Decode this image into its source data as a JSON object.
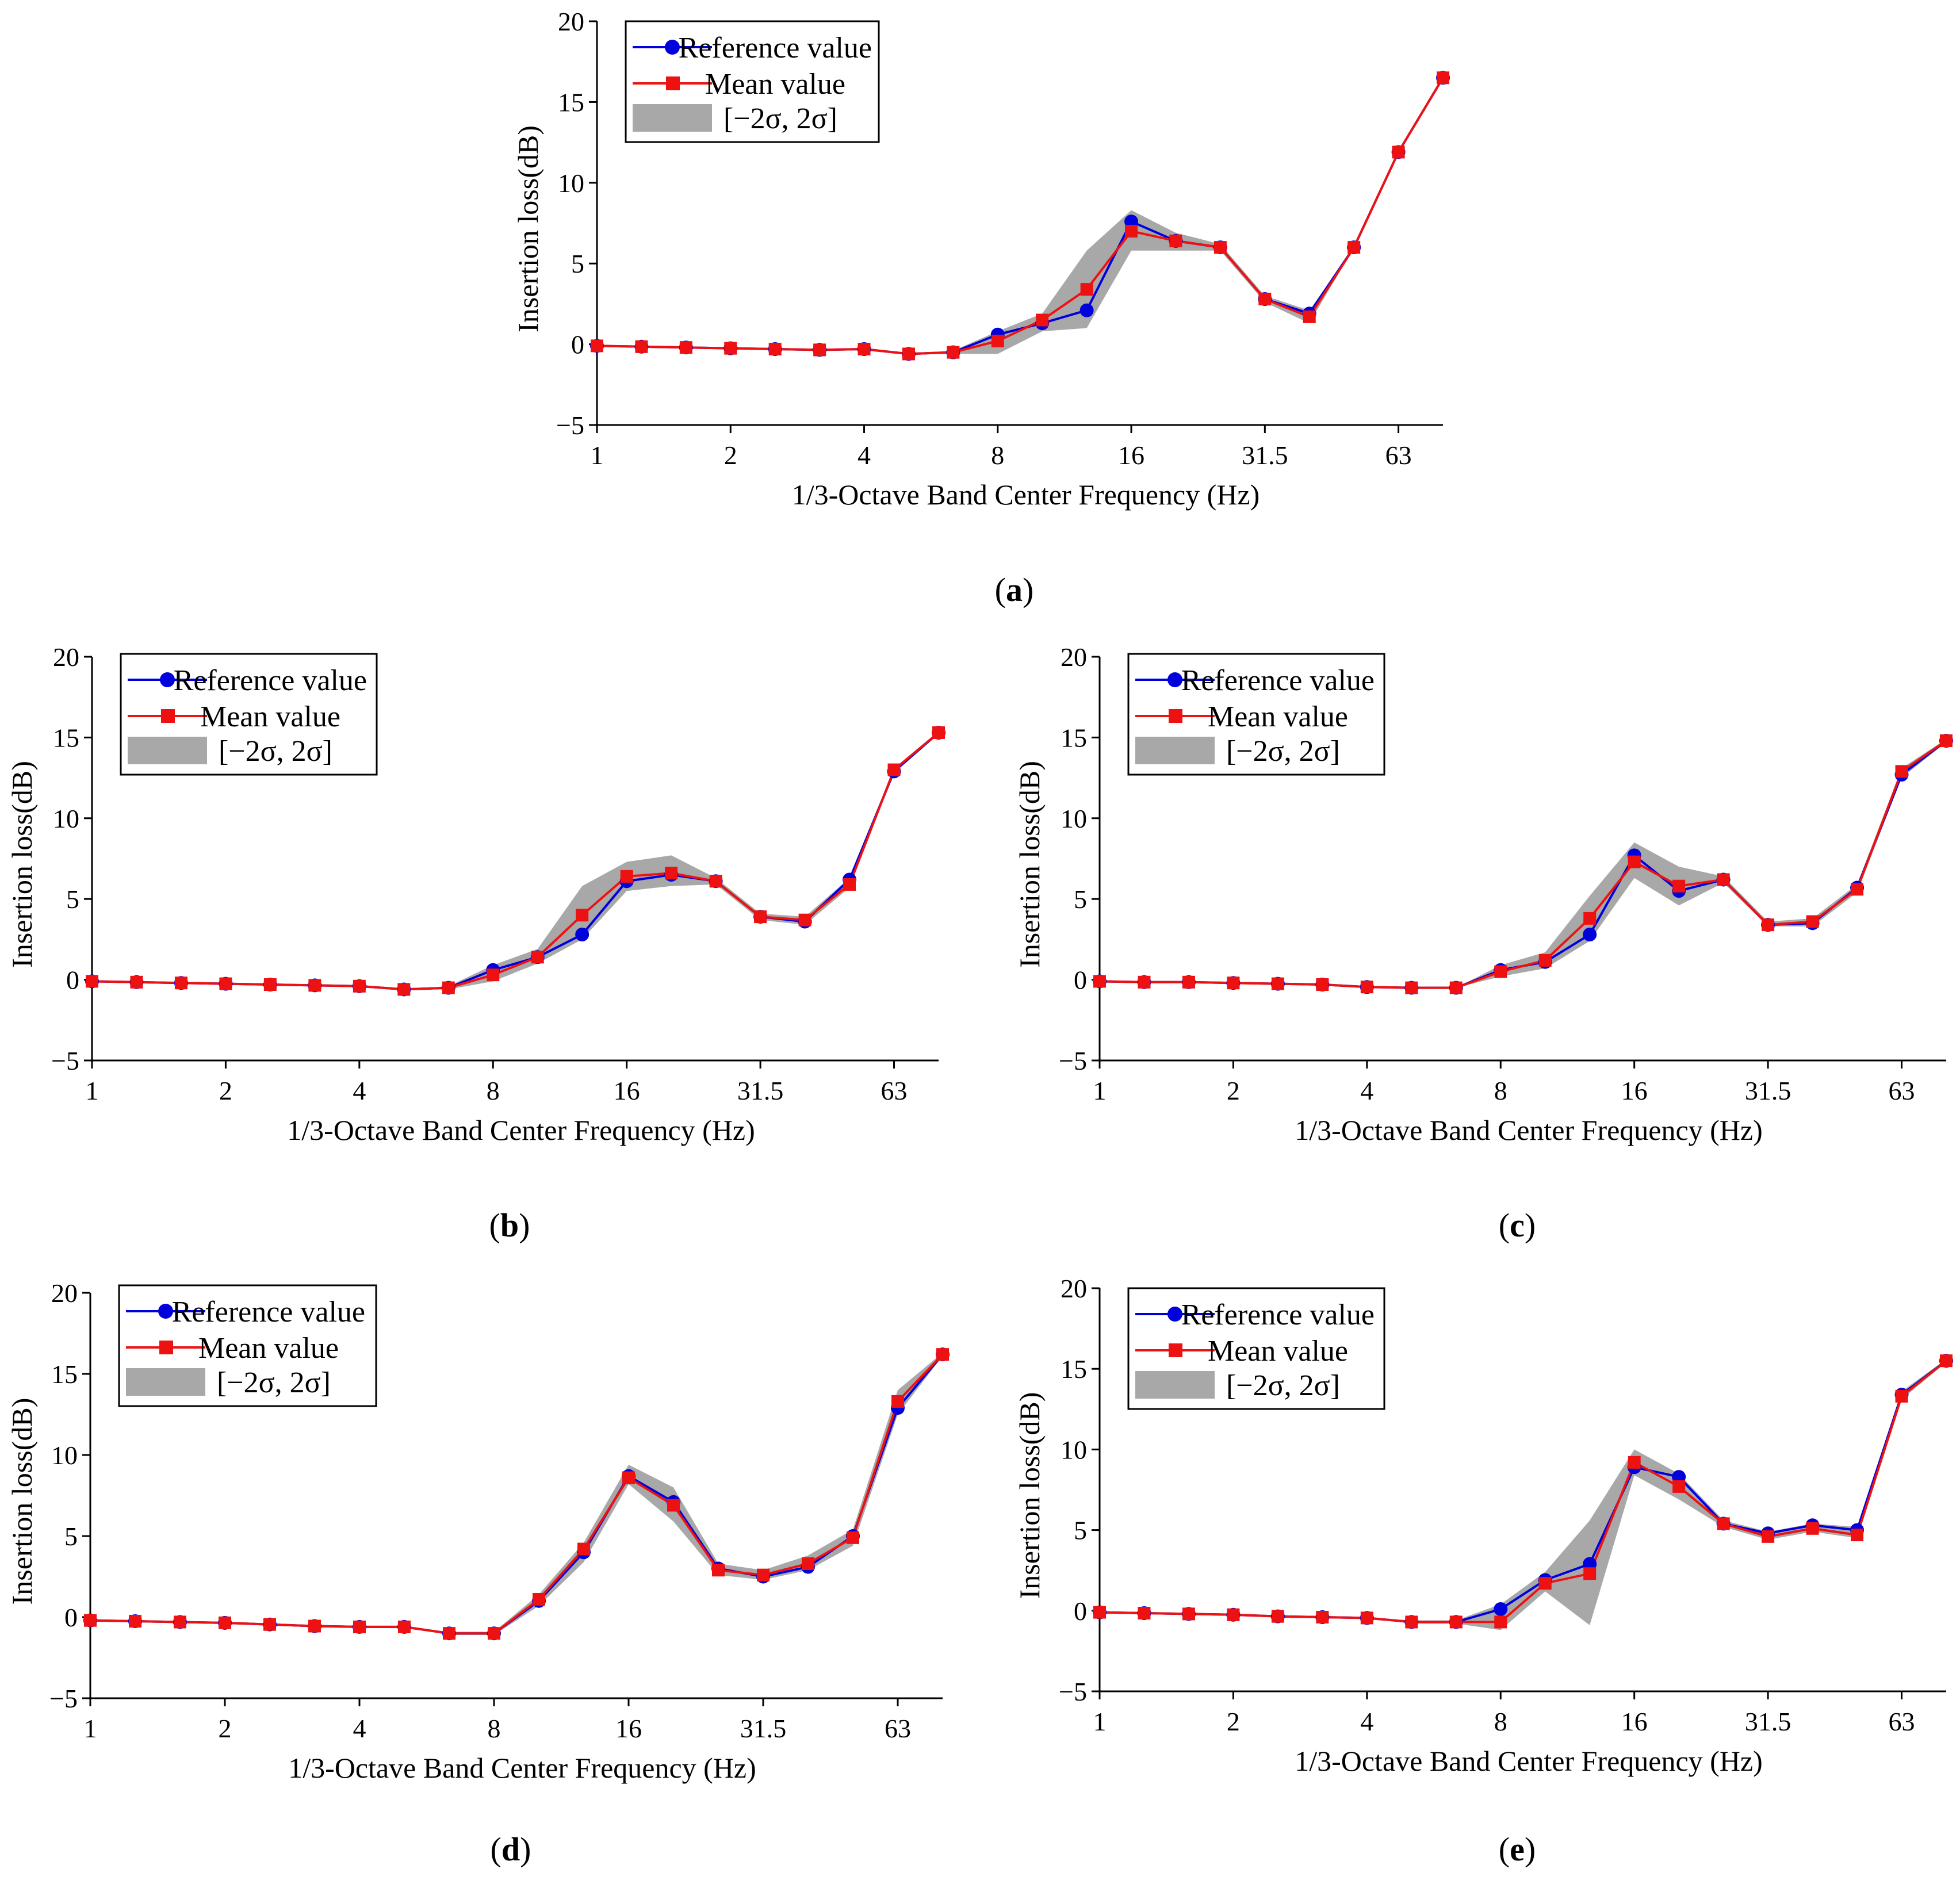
{
  "colors": {
    "reference": "#0000dd",
    "mean": "#ee1111",
    "band": "#a8a8a8"
  },
  "common": {
    "xlabel": "1/3-Octave Band Center Frequency (Hz)",
    "ylabel": "Insertion loss(dB)",
    "x_ticks": [
      "1",
      "2",
      "4",
      "8",
      "16",
      "31.5",
      "63"
    ],
    "y_ticks": [
      "20",
      "15",
      "10",
      "5",
      "0",
      "−5"
    ],
    "legend": [
      "Reference value",
      "Mean value",
      "[−2σ, 2σ]"
    ]
  },
  "chart_data": [
    {
      "id": "a",
      "type": "line",
      "caption": {
        "open": "(",
        "letter": "a",
        "close": ")"
      },
      "xlabel": "1/3-Octave Band Center Frequency (Hz)",
      "ylabel": "Insertion loss(dB)",
      "x_scale": "log2",
      "xlim_band_index": [
        0,
        19
      ],
      "ylim": [
        -5,
        20
      ],
      "x": [
        1,
        1.25,
        1.6,
        2,
        2.5,
        3.15,
        4,
        5,
        6.3,
        8,
        10,
        12.5,
        16,
        20,
        25,
        31.5,
        40,
        50,
        63,
        80
      ],
      "series": [
        {
          "name": "Reference value",
          "values": [
            -0.1,
            -0.15,
            -0.2,
            -0.25,
            -0.3,
            -0.35,
            -0.3,
            -0.6,
            -0.5,
            0.6,
            1.3,
            2.1,
            7.6,
            6.4,
            6.0,
            2.8,
            1.9,
            6.0,
            11.9,
            16.5
          ]
        },
        {
          "name": "Mean value",
          "values": [
            -0.1,
            -0.15,
            -0.2,
            -0.25,
            -0.3,
            -0.35,
            -0.3,
            -0.6,
            -0.5,
            0.2,
            1.5,
            3.4,
            7.0,
            6.4,
            6.0,
            2.8,
            1.7,
            6.0,
            11.9,
            16.5
          ]
        },
        {
          "name": "[−2σ, 2σ]",
          "lower": [
            -0.1,
            -0.15,
            -0.2,
            -0.25,
            -0.3,
            -0.35,
            -0.3,
            -0.6,
            -0.6,
            -0.6,
            0.8,
            1.0,
            5.8,
            5.8,
            5.8,
            2.6,
            1.3,
            6.0,
            11.9,
            16.5
          ],
          "upper": [
            -0.1,
            -0.15,
            -0.2,
            -0.25,
            -0.3,
            -0.35,
            -0.3,
            -0.6,
            -0.4,
            0.8,
            1.9,
            5.8,
            8.3,
            6.9,
            6.2,
            3.0,
            2.1,
            6.0,
            11.9,
            16.5
          ]
        }
      ]
    },
    {
      "id": "b",
      "type": "line",
      "caption": {
        "open": "(",
        "letter": "b",
        "close": ")"
      },
      "xlabel": "1/3-Octave Band Center Frequency (Hz)",
      "ylabel": "Insertion loss(dB)",
      "x_scale": "log2",
      "xlim_band_index": [
        0,
        19
      ],
      "ylim": [
        -5,
        20
      ],
      "x": [
        1,
        1.25,
        1.6,
        2,
        2.5,
        3.15,
        4,
        5,
        6.3,
        8,
        10,
        12.5,
        16,
        20,
        25,
        31.5,
        40,
        50,
        63,
        80
      ],
      "series": [
        {
          "name": "Reference value",
          "values": [
            -0.1,
            -0.15,
            -0.2,
            -0.25,
            -0.3,
            -0.35,
            -0.4,
            -0.6,
            -0.5,
            0.6,
            1.4,
            2.8,
            6.1,
            6.5,
            6.1,
            3.9,
            3.6,
            6.2,
            12.9,
            15.3
          ]
        },
        {
          "name": "Mean value",
          "values": [
            -0.1,
            -0.15,
            -0.2,
            -0.25,
            -0.3,
            -0.35,
            -0.4,
            -0.6,
            -0.5,
            0.3,
            1.4,
            4.0,
            6.4,
            6.6,
            6.1,
            3.9,
            3.7,
            5.9,
            13.0,
            15.3
          ]
        },
        {
          "name": "[−2σ, 2σ]",
          "lower": [
            -0.1,
            -0.15,
            -0.2,
            -0.25,
            -0.3,
            -0.35,
            -0.4,
            -0.6,
            -0.6,
            -0.1,
            1.0,
            2.5,
            5.5,
            5.8,
            5.9,
            3.7,
            3.4,
            5.7,
            12.8,
            15.2
          ],
          "upper": [
            -0.1,
            -0.15,
            -0.2,
            -0.25,
            -0.3,
            -0.35,
            -0.4,
            -0.6,
            -0.4,
            0.9,
            1.9,
            5.8,
            7.3,
            7.7,
            6.3,
            4.1,
            3.9,
            6.3,
            13.1,
            15.4
          ]
        }
      ]
    },
    {
      "id": "c",
      "type": "line",
      "caption": {
        "open": "(",
        "letter": "c",
        "close": ")"
      },
      "xlabel": "1/3-Octave Band Center Frequency (Hz)",
      "ylabel": "Insertion loss(dB)",
      "x_scale": "log2",
      "xlim_band_index": [
        0,
        19
      ],
      "ylim": [
        -5,
        20
      ],
      "x": [
        1,
        1.25,
        1.6,
        2,
        2.5,
        3.15,
        4,
        5,
        6.3,
        8,
        10,
        12.5,
        16,
        20,
        25,
        31.5,
        40,
        50,
        63,
        80
      ],
      "series": [
        {
          "name": "Reference value",
          "values": [
            -0.1,
            -0.15,
            -0.15,
            -0.2,
            -0.25,
            -0.3,
            -0.45,
            -0.5,
            -0.5,
            0.6,
            1.1,
            2.8,
            7.7,
            5.5,
            6.2,
            3.4,
            3.5,
            5.7,
            12.7,
            14.8
          ]
        },
        {
          "name": "Mean value",
          "values": [
            -0.1,
            -0.15,
            -0.15,
            -0.2,
            -0.25,
            -0.3,
            -0.45,
            -0.5,
            -0.5,
            0.5,
            1.2,
            3.8,
            7.3,
            5.8,
            6.2,
            3.4,
            3.6,
            5.6,
            12.9,
            14.8
          ]
        },
        {
          "name": "[−2σ, 2σ]",
          "lower": [
            -0.1,
            -0.15,
            -0.15,
            -0.2,
            -0.25,
            -0.3,
            -0.45,
            -0.5,
            -0.5,
            0.2,
            0.7,
            2.4,
            6.3,
            4.6,
            6.0,
            3.3,
            3.3,
            5.4,
            12.5,
            14.7
          ],
          "upper": [
            -0.1,
            -0.15,
            -0.15,
            -0.2,
            -0.25,
            -0.3,
            -0.45,
            -0.5,
            -0.5,
            0.9,
            1.7,
            5.2,
            8.5,
            7.0,
            6.4,
            3.6,
            3.8,
            5.9,
            13.1,
            14.9
          ]
        }
      ]
    },
    {
      "id": "d",
      "type": "line",
      "caption": {
        "open": "(",
        "letter": "d",
        "close": ")"
      },
      "xlabel": "1/3-Octave Band Center Frequency (Hz)",
      "ylabel": "Insertion loss(dB)",
      "x_scale": "log2",
      "xlim_band_index": [
        0,
        19
      ],
      "ylim": [
        -5,
        20
      ],
      "x": [
        1,
        1.25,
        1.6,
        2,
        2.5,
        3.15,
        4,
        5,
        6.3,
        8,
        10,
        12.5,
        16,
        20,
        25,
        31.5,
        40,
        50,
        63,
        80
      ],
      "series": [
        {
          "name": "Reference value",
          "values": [
            -0.2,
            -0.25,
            -0.3,
            -0.35,
            -0.45,
            -0.55,
            -0.6,
            -0.6,
            -1.0,
            -1.0,
            1.0,
            4.0,
            8.7,
            7.1,
            3.0,
            2.5,
            3.1,
            5.0,
            12.9,
            16.2
          ]
        },
        {
          "name": "Mean value",
          "values": [
            -0.2,
            -0.25,
            -0.3,
            -0.35,
            -0.45,
            -0.55,
            -0.6,
            -0.6,
            -1.0,
            -1.0,
            1.1,
            4.2,
            8.6,
            6.9,
            2.9,
            2.6,
            3.3,
            4.9,
            13.3,
            16.2
          ]
        },
        {
          "name": "[−2σ, 2σ]",
          "lower": [
            -0.2,
            -0.25,
            -0.3,
            -0.35,
            -0.45,
            -0.55,
            -0.6,
            -0.6,
            -1.1,
            -1.1,
            0.7,
            3.4,
            8.2,
            5.9,
            2.6,
            2.3,
            2.9,
            4.4,
            12.5,
            16.1
          ],
          "upper": [
            -0.2,
            -0.25,
            -0.3,
            -0.35,
            -0.45,
            -0.55,
            -0.6,
            -0.6,
            -0.9,
            -0.9,
            1.4,
            4.6,
            9.4,
            8.0,
            3.3,
            2.9,
            3.8,
            5.4,
            14.0,
            16.3
          ]
        }
      ]
    },
    {
      "id": "e",
      "type": "line",
      "caption": {
        "open": "(",
        "letter": "e",
        "close": ")"
      },
      "xlabel": "1/3-Octave Band Center Frequency (Hz)",
      "ylabel": "Insertion loss(dB)",
      "x_scale": "log2",
      "xlim_band_index": [
        0,
        19
      ],
      "ylim": [
        -5,
        20
      ],
      "x": [
        1,
        1.25,
        1.6,
        2,
        2.5,
        3.15,
        4,
        5,
        6.3,
        8,
        10,
        12.5,
        16,
        20,
        25,
        31.5,
        40,
        50,
        63,
        80
      ],
      "series": [
        {
          "name": "Reference value",
          "values": [
            -0.1,
            -0.15,
            -0.2,
            -0.25,
            -0.35,
            -0.4,
            -0.45,
            -0.7,
            -0.7,
            0.1,
            1.9,
            2.9,
            8.9,
            8.3,
            5.4,
            4.8,
            5.3,
            5.0,
            13.4,
            15.5
          ]
        },
        {
          "name": "Mean value",
          "values": [
            -0.1,
            -0.15,
            -0.2,
            -0.25,
            -0.35,
            -0.4,
            -0.45,
            -0.7,
            -0.7,
            -0.7,
            1.7,
            2.3,
            9.2,
            7.7,
            5.4,
            4.6,
            5.1,
            4.7,
            13.3,
            15.5
          ]
        },
        {
          "name": "[−2σ, 2σ]",
          "lower": [
            -0.1,
            -0.15,
            -0.2,
            -0.25,
            -0.35,
            -0.4,
            -0.45,
            -0.8,
            -0.8,
            -1.2,
            1.2,
            -0.9,
            8.4,
            6.9,
            5.2,
            4.4,
            4.9,
            4.5,
            13.1,
            15.4
          ],
          "upper": [
            -0.1,
            -0.15,
            -0.2,
            -0.25,
            -0.35,
            -0.4,
            -0.45,
            -0.6,
            -0.6,
            0.4,
            2.4,
            5.6,
            10.0,
            8.5,
            5.6,
            4.9,
            5.4,
            5.2,
            13.6,
            15.6
          ]
        }
      ]
    }
  ]
}
